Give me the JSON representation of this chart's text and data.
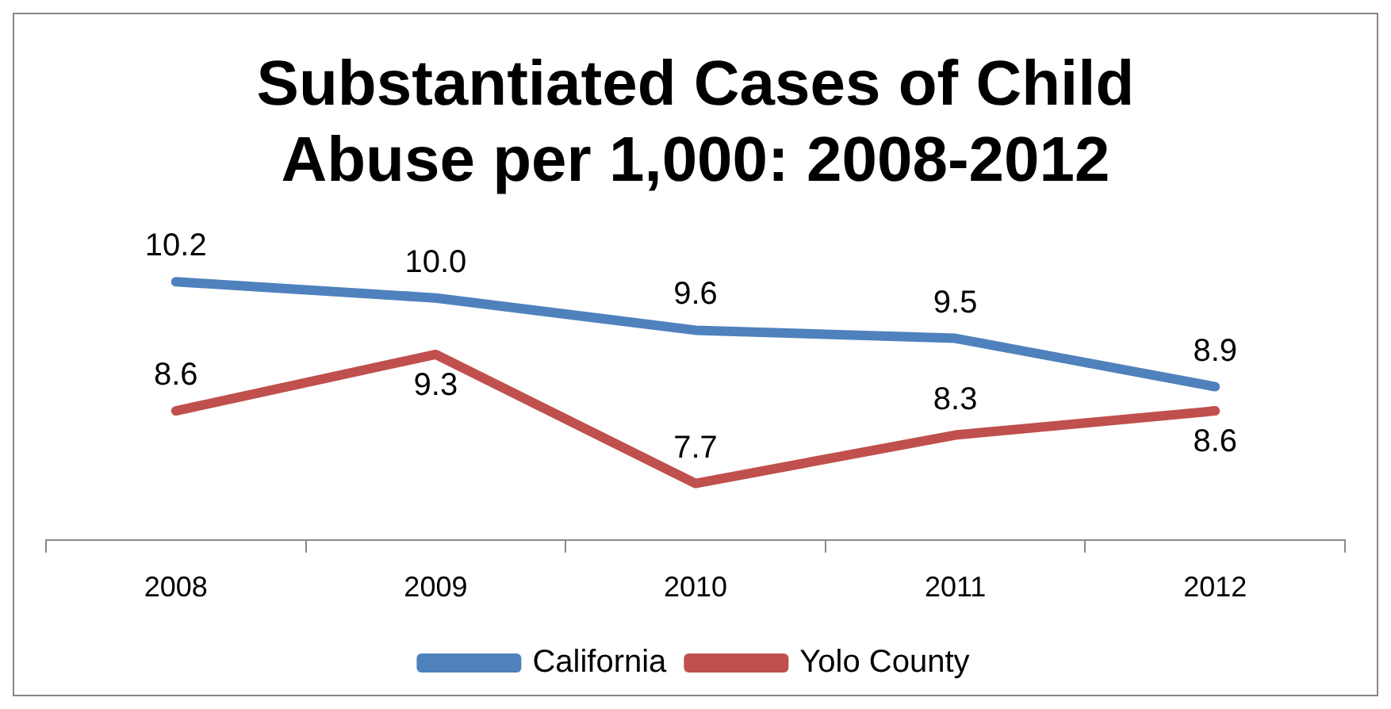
{
  "chart_data": {
    "type": "line",
    "title": "Substantiated Cases of Child Abuse per 1,000: 2008-2012",
    "categories": [
      "2008",
      "2009",
      "2010",
      "2011",
      "2012"
    ],
    "series": [
      {
        "name": "California",
        "color": "#4f81bd",
        "values": [
          10.2,
          10.0,
          9.6,
          9.5,
          8.9
        ],
        "value_labels": [
          "10.2",
          "10.0",
          "9.6",
          "9.5",
          "8.9"
        ]
      },
      {
        "name": "Yolo County",
        "color": "#c0504d",
        "values": [
          8.6,
          9.3,
          7.7,
          8.3,
          8.6
        ],
        "value_labels": [
          "8.6",
          "9.3",
          "7.7",
          "8.3",
          "8.6"
        ]
      }
    ],
    "legend": "bottom",
    "marker": "none",
    "line_style": "solid",
    "grid": false,
    "tick_labels": "x"
  }
}
